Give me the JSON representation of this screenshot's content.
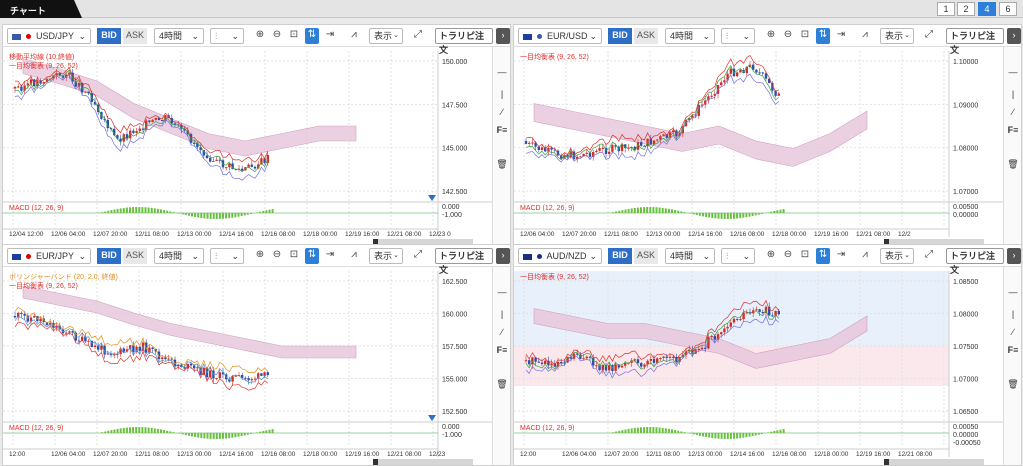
{
  "tab": {
    "label": "チャート"
  },
  "pages": [
    "1",
    "2",
    "4",
    "6"
  ],
  "active_page": "4",
  "common": {
    "bid": "BID",
    "ask": "ASK",
    "timeframe": "4時間",
    "display": "表示",
    "order": "トラリピ注文",
    "f_label": "F"
  },
  "panels": [
    {
      "id": "usdjpy",
      "pair": "USD/JPY",
      "legend": [
        "移動平均線 (10,終値)",
        "一目均衡表 (9, 26, 52)"
      ],
      "legend_colors": [
        "#e0302a",
        "#e0302a"
      ],
      "price_ticks": [
        "150.000",
        "147.500",
        "145.000",
        "142.500"
      ],
      "macd_label": "MACD (12, 26, 9)",
      "macd_ticks": [
        "0.000",
        "-1.000"
      ],
      "time_ticks": [
        "12/04 12:00",
        "12/06 04:00",
        "12/07 20:00",
        "12/11 08:00",
        "12/13 00:00",
        "12/14 16:00",
        "12/16 08:00",
        "12/18 00:00",
        "12/19 16:00",
        "12/21 08:00",
        "12/23 0"
      ]
    },
    {
      "id": "eurusd",
      "pair": "EUR/USD",
      "legend": [
        "一目均衡表 (9, 26, 52)"
      ],
      "legend_colors": [
        "#e0302a"
      ],
      "price_ticks": [
        "1.10000",
        "1.09000",
        "1.08000",
        "1.07000"
      ],
      "macd_label": "MACD (12, 26, 9)",
      "macd_ticks": [
        "0.00500",
        "0.00000"
      ],
      "time_ticks": [
        "12/06 04:00",
        "12/07 20:00",
        "12/11 08:00",
        "12/13 00:00",
        "12/14 16:00",
        "12/16 08:00",
        "12/18 00:00",
        "12/19 16:00",
        "12/21 08:00",
        "12/2"
      ]
    },
    {
      "id": "eurjpy",
      "pair": "EUR/JPY",
      "legend": [
        "ボリンジャーバンド (20, 2.0, 終値)",
        "一目均衡表 (9, 26, 52)"
      ],
      "legend_colors": [
        "#e09020",
        "#e0302a"
      ],
      "price_ticks": [
        "162.500",
        "160.000",
        "157.500",
        "155.000",
        "152.500"
      ],
      "macd_label": "MACD (12, 26, 9)",
      "macd_ticks": [
        "0.000",
        "-1.000"
      ],
      "time_ticks": [
        "12:00",
        "12/06 04:00",
        "12/07 20:00",
        "12/11 08:00",
        "12/13 00:00",
        "12/14 16:00",
        "12/16 08:00",
        "12/18 00:00",
        "12/19 16:00",
        "12/21 08:00",
        "12/23"
      ]
    },
    {
      "id": "audnzd",
      "pair": "AUD/NZD",
      "legend": [
        "一目均衡表 (9, 26, 52)"
      ],
      "legend_colors": [
        "#e0302a"
      ],
      "price_ticks": [
        "1.08500",
        "1.08000",
        "1.07500",
        "1.07000",
        "1.06500"
      ],
      "macd_label": "MACD (12, 26, 9)",
      "macd_ticks": [
        "0.00050",
        "0.00000",
        "-0.00050"
      ],
      "time_ticks": [
        "12:00",
        "12/06 04:00",
        "12/07 20:00",
        "12/11 08:00",
        "12/13 00:00",
        "12/14 16:00",
        "12/16 08:00",
        "12/18 00:00",
        "12/19 16:00",
        "12/21 08:00"
      ]
    }
  ],
  "colors": {
    "accent": "#2d7fd8",
    "up": "#d0302a",
    "down": "#2d4fa8",
    "cloud": "#c8a0c8"
  }
}
